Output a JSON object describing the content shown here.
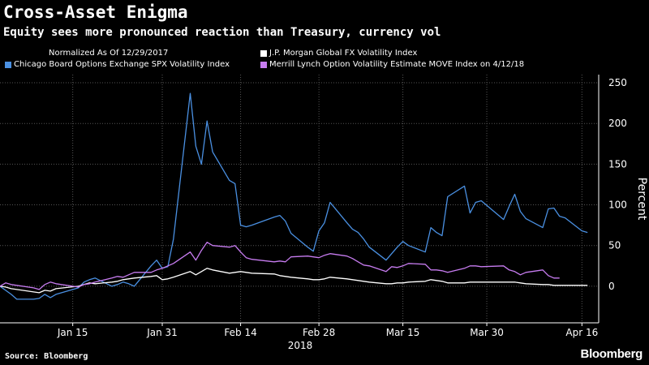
{
  "chart_data": {
    "type": "line",
    "title": "Cross-Asset Enigma",
    "subtitle": "Equity sees more pronounced reaction than Treasury, currency vol",
    "note": "Normalized As Of 12/29/2017",
    "ylabel": "Percent",
    "ylim": [
      -45,
      260
    ],
    "yticks": [
      0,
      50,
      100,
      150,
      200,
      250
    ],
    "xlim": [
      "2018-01-02",
      "2018-04-19"
    ],
    "xticks": [
      {
        "date": "2018-01-15",
        "label": "Jan 15"
      },
      {
        "date": "2018-01-31",
        "label": "Jan 31"
      },
      {
        "date": "2018-02-14",
        "label": "Feb 14"
      },
      {
        "date": "2018-02-28",
        "label": "Feb 28"
      },
      {
        "date": "2018-03-15",
        "label": "Mar 15"
      },
      {
        "date": "2018-03-30",
        "label": "Mar 30"
      },
      {
        "date": "2018-04-16",
        "label": "Apr 16"
      }
    ],
    "year_label": "2018",
    "grid": true,
    "series": [
      {
        "name": "Chicago Board Options Exchange SPX Volatility Index",
        "color": "#4a90e2",
        "points": [
          [
            "2018-01-02",
            0
          ],
          [
            "2018-01-03",
            -5
          ],
          [
            "2018-01-04",
            -10
          ],
          [
            "2018-01-05",
            -16
          ],
          [
            "2018-01-08",
            -16
          ],
          [
            "2018-01-09",
            -15
          ],
          [
            "2018-01-10",
            -10
          ],
          [
            "2018-01-11",
            -14
          ],
          [
            "2018-01-12",
            -10
          ],
          [
            "2018-01-16",
            -2
          ],
          [
            "2018-01-17",
            5
          ],
          [
            "2018-01-18",
            8
          ],
          [
            "2018-01-19",
            10
          ],
          [
            "2018-01-22",
            0
          ],
          [
            "2018-01-23",
            2
          ],
          [
            "2018-01-24",
            5
          ],
          [
            "2018-01-25",
            3
          ],
          [
            "2018-01-26",
            0
          ],
          [
            "2018-01-29",
            25
          ],
          [
            "2018-01-30",
            32
          ],
          [
            "2018-01-31",
            22
          ],
          [
            "2018-02-01",
            24
          ],
          [
            "2018-02-02",
            58
          ],
          [
            "2018-02-05",
            237
          ],
          [
            "2018-02-06",
            172
          ],
          [
            "2018-02-07",
            150
          ],
          [
            "2018-02-08",
            203
          ],
          [
            "2018-02-09",
            165
          ],
          [
            "2018-02-12",
            130
          ],
          [
            "2018-02-13",
            126
          ],
          [
            "2018-02-14",
            75
          ],
          [
            "2018-02-15",
            73
          ],
          [
            "2018-02-16",
            75
          ],
          [
            "2018-02-20",
            85
          ],
          [
            "2018-02-21",
            87
          ],
          [
            "2018-02-22",
            80
          ],
          [
            "2018-02-23",
            65
          ],
          [
            "2018-02-26",
            48
          ],
          [
            "2018-02-27",
            43
          ],
          [
            "2018-02-28",
            68
          ],
          [
            "2018-03-01",
            78
          ],
          [
            "2018-03-02",
            103
          ],
          [
            "2018-03-05",
            78
          ],
          [
            "2018-03-06",
            70
          ],
          [
            "2018-03-07",
            66
          ],
          [
            "2018-03-08",
            58
          ],
          [
            "2018-03-09",
            48
          ],
          [
            "2018-03-12",
            32
          ],
          [
            "2018-03-13",
            40
          ],
          [
            "2018-03-14",
            48
          ],
          [
            "2018-03-15",
            55
          ],
          [
            "2018-03-16",
            50
          ],
          [
            "2018-03-19",
            42
          ],
          [
            "2018-03-20",
            72
          ],
          [
            "2018-03-21",
            66
          ],
          [
            "2018-03-22",
            62
          ],
          [
            "2018-03-23",
            110
          ],
          [
            "2018-03-26",
            123
          ],
          [
            "2018-03-27",
            90
          ],
          [
            "2018-03-28",
            103
          ],
          [
            "2018-03-29",
            105
          ],
          [
            "2018-04-02",
            82
          ],
          [
            "2018-04-03",
            98
          ],
          [
            "2018-04-04",
            113
          ],
          [
            "2018-04-05",
            92
          ],
          [
            "2018-04-06",
            83
          ],
          [
            "2018-04-09",
            72
          ],
          [
            "2018-04-10",
            95
          ],
          [
            "2018-04-11",
            96
          ],
          [
            "2018-04-12",
            86
          ],
          [
            "2018-04-13",
            84
          ],
          [
            "2018-04-16",
            68
          ],
          [
            "2018-04-17",
            66
          ]
        ]
      },
      {
        "name": "J.P. Morgan Global FX Volatility Index",
        "color": "#ffffff",
        "points": [
          [
            "2018-01-02",
            0
          ],
          [
            "2018-01-03",
            -1
          ],
          [
            "2018-01-04",
            -3
          ],
          [
            "2018-01-05",
            -4
          ],
          [
            "2018-01-08",
            -7
          ],
          [
            "2018-01-09",
            -8
          ],
          [
            "2018-01-10",
            -5
          ],
          [
            "2018-01-11",
            -6
          ],
          [
            "2018-01-12",
            -3
          ],
          [
            "2018-01-16",
            0
          ],
          [
            "2018-01-17",
            2
          ],
          [
            "2018-01-18",
            4
          ],
          [
            "2018-01-19",
            3
          ],
          [
            "2018-01-22",
            5
          ],
          [
            "2018-01-23",
            6
          ],
          [
            "2018-01-24",
            8
          ],
          [
            "2018-01-25",
            9
          ],
          [
            "2018-01-26",
            10
          ],
          [
            "2018-01-29",
            12
          ],
          [
            "2018-01-30",
            13
          ],
          [
            "2018-01-31",
            8
          ],
          [
            "2018-02-01",
            9
          ],
          [
            "2018-02-02",
            11
          ],
          [
            "2018-02-05",
            18
          ],
          [
            "2018-02-06",
            14
          ],
          [
            "2018-02-07",
            18
          ],
          [
            "2018-02-08",
            22
          ],
          [
            "2018-02-09",
            20
          ],
          [
            "2018-02-12",
            16
          ],
          [
            "2018-02-13",
            17
          ],
          [
            "2018-02-14",
            18
          ],
          [
            "2018-02-15",
            17
          ],
          [
            "2018-02-16",
            16
          ],
          [
            "2018-02-20",
            15
          ],
          [
            "2018-02-21",
            13
          ],
          [
            "2018-02-22",
            12
          ],
          [
            "2018-02-23",
            11
          ],
          [
            "2018-02-26",
            9
          ],
          [
            "2018-02-27",
            8
          ],
          [
            "2018-02-28",
            8
          ],
          [
            "2018-03-01",
            9
          ],
          [
            "2018-03-02",
            11
          ],
          [
            "2018-03-05",
            9
          ],
          [
            "2018-03-06",
            8
          ],
          [
            "2018-03-07",
            7
          ],
          [
            "2018-03-08",
            6
          ],
          [
            "2018-03-09",
            5
          ],
          [
            "2018-03-12",
            3
          ],
          [
            "2018-03-13",
            3
          ],
          [
            "2018-03-14",
            4
          ],
          [
            "2018-03-15",
            4
          ],
          [
            "2018-03-16",
            5
          ],
          [
            "2018-03-19",
            6
          ],
          [
            "2018-03-20",
            8
          ],
          [
            "2018-03-21",
            7
          ],
          [
            "2018-03-22",
            6
          ],
          [
            "2018-03-23",
            4
          ],
          [
            "2018-03-26",
            4
          ],
          [
            "2018-03-27",
            5
          ],
          [
            "2018-03-28",
            5
          ],
          [
            "2018-03-29",
            5
          ],
          [
            "2018-04-02",
            5
          ],
          [
            "2018-04-03",
            5
          ],
          [
            "2018-04-04",
            5
          ],
          [
            "2018-04-05",
            4
          ],
          [
            "2018-04-06",
            3
          ],
          [
            "2018-04-09",
            2
          ],
          [
            "2018-04-10",
            2
          ],
          [
            "2018-04-11",
            1
          ],
          [
            "2018-04-12",
            1
          ],
          [
            "2018-04-13",
            1
          ],
          [
            "2018-04-16",
            1
          ],
          [
            "2018-04-17",
            1
          ]
        ]
      },
      {
        "name": "Merrill Lynch Option Volatility Estimate MOVE Index  on 4/12/18",
        "color": "#c77cf0",
        "points": [
          [
            "2018-01-02",
            0
          ],
          [
            "2018-01-03",
            4
          ],
          [
            "2018-01-04",
            2
          ],
          [
            "2018-01-05",
            1
          ],
          [
            "2018-01-08",
            -2
          ],
          [
            "2018-01-09",
            -4
          ],
          [
            "2018-01-10",
            2
          ],
          [
            "2018-01-11",
            5
          ],
          [
            "2018-01-12",
            3
          ],
          [
            "2018-01-16",
            -1
          ],
          [
            "2018-01-17",
            2
          ],
          [
            "2018-01-18",
            3
          ],
          [
            "2018-01-19",
            5
          ],
          [
            "2018-01-22",
            10
          ],
          [
            "2018-01-23",
            12
          ],
          [
            "2018-01-24",
            11
          ],
          [
            "2018-01-25",
            14
          ],
          [
            "2018-01-26",
            17
          ],
          [
            "2018-01-29",
            17
          ],
          [
            "2018-01-30",
            20
          ],
          [
            "2018-01-31",
            22
          ],
          [
            "2018-02-01",
            25
          ],
          [
            "2018-02-02",
            28
          ],
          [
            "2018-02-05",
            42
          ],
          [
            "2018-02-06",
            32
          ],
          [
            "2018-02-07",
            44
          ],
          [
            "2018-02-08",
            54
          ],
          [
            "2018-02-09",
            50
          ],
          [
            "2018-02-12",
            48
          ],
          [
            "2018-02-13",
            50
          ],
          [
            "2018-02-14",
            42
          ],
          [
            "2018-02-15",
            35
          ],
          [
            "2018-02-16",
            33
          ],
          [
            "2018-02-20",
            30
          ],
          [
            "2018-02-21",
            31
          ],
          [
            "2018-02-22",
            30
          ],
          [
            "2018-02-23",
            36
          ],
          [
            "2018-02-26",
            37
          ],
          [
            "2018-02-27",
            36
          ],
          [
            "2018-02-28",
            35
          ],
          [
            "2018-03-01",
            38
          ],
          [
            "2018-03-02",
            40
          ],
          [
            "2018-03-05",
            37
          ],
          [
            "2018-03-06",
            34
          ],
          [
            "2018-03-07",
            30
          ],
          [
            "2018-03-08",
            26
          ],
          [
            "2018-03-09",
            25
          ],
          [
            "2018-03-12",
            18
          ],
          [
            "2018-03-13",
            24
          ],
          [
            "2018-03-14",
            23
          ],
          [
            "2018-03-15",
            25
          ],
          [
            "2018-03-16",
            28
          ],
          [
            "2018-03-19",
            27
          ],
          [
            "2018-03-20",
            20
          ],
          [
            "2018-03-21",
            20
          ],
          [
            "2018-03-22",
            19
          ],
          [
            "2018-03-23",
            17
          ],
          [
            "2018-03-26",
            22
          ],
          [
            "2018-03-27",
            25
          ],
          [
            "2018-03-28",
            25
          ],
          [
            "2018-03-29",
            24
          ],
          [
            "2018-04-02",
            25
          ],
          [
            "2018-04-03",
            20
          ],
          [
            "2018-04-04",
            18
          ],
          [
            "2018-04-05",
            14
          ],
          [
            "2018-04-06",
            17
          ],
          [
            "2018-04-09",
            20
          ],
          [
            "2018-04-10",
            13
          ],
          [
            "2018-04-11",
            10
          ],
          [
            "2018-04-12",
            10
          ]
        ]
      }
    ]
  },
  "source": "Source: Bloomberg",
  "brand": "Bloomberg",
  "colors": {
    "background": "#000000",
    "grid": "#555555"
  }
}
